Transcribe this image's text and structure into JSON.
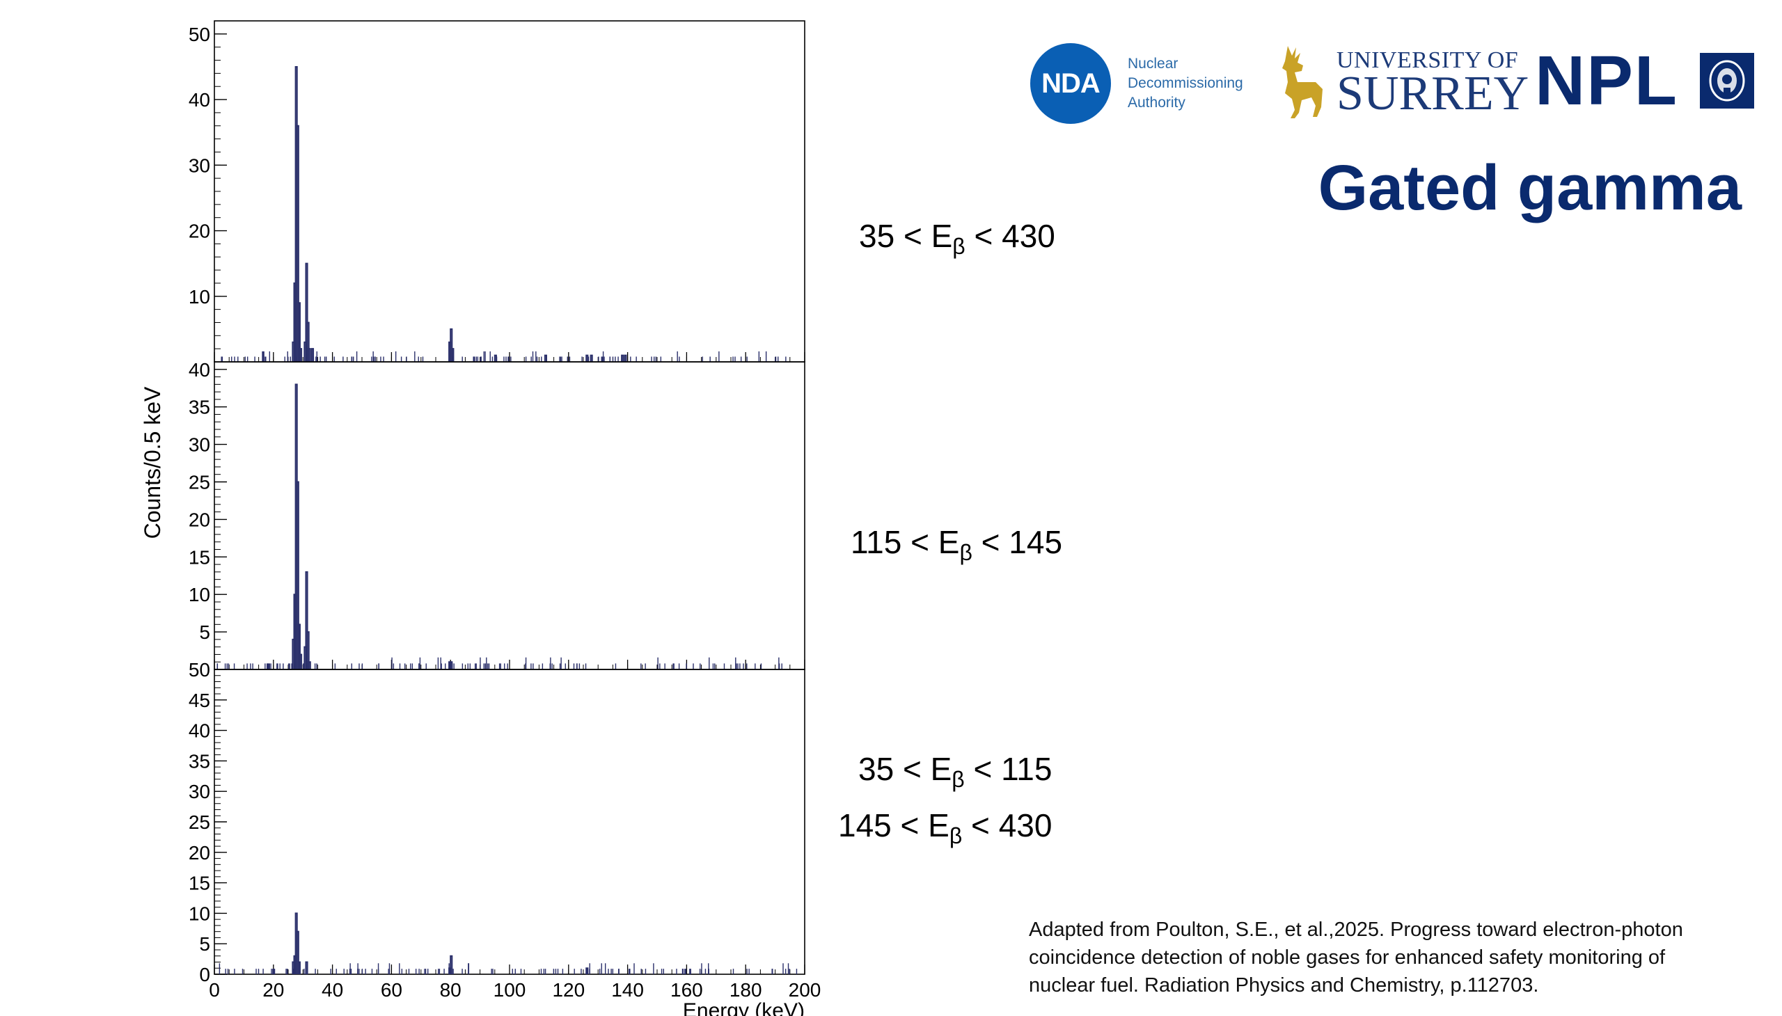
{
  "logos": {
    "nda": {
      "mark": "NDA",
      "lines": [
        "Nuclear",
        "Decommissioning",
        "Authority"
      ]
    },
    "surrey": {
      "line1": "UNIVERSITY OF",
      "line2": "SURREY",
      "icon": "stag-icon"
    },
    "npl": {
      "text": "NPL",
      "icon": "npl-crest-icon"
    }
  },
  "title": "Gated gamma",
  "gate_labels": [
    {
      "parts": [
        {
          "pre": "35 < E",
          "sub": "β",
          "post": " < 430"
        }
      ]
    },
    {
      "parts": [
        {
          "pre": "115 < E",
          "sub": "β",
          "post": " < 145"
        }
      ]
    },
    {
      "parts": [
        {
          "pre": "35 < E",
          "sub": "β",
          "post": " < 115"
        },
        {
          "pre": "145 < E",
          "sub": "β",
          "post": " < 430"
        }
      ]
    }
  ],
  "citation": [
    "Adapted from Poulton, S.E., et al.,2025. Progress toward electron-photon",
    "coincidence detection of noble gases for enhanced safety monitoring of",
    "nuclear fuel. Radiation Physics and Chemistry, p.112703."
  ],
  "chart_data": [
    {
      "type": "histogram",
      "xlabel": "",
      "ylabel": "",
      "xlim": [
        0,
        200
      ],
      "ylim": [
        0,
        52
      ],
      "yticks": [
        10,
        20,
        30,
        40,
        50
      ],
      "bin_width_keV": 0.5,
      "bins": [
        {
          "x": 26.5,
          "y": 3
        },
        {
          "x": 27.0,
          "y": 12
        },
        {
          "x": 27.5,
          "y": 45
        },
        {
          "x": 28.0,
          "y": 36
        },
        {
          "x": 28.5,
          "y": 9
        },
        {
          "x": 29.0,
          "y": 2
        },
        {
          "x": 30.5,
          "y": 3
        },
        {
          "x": 31.0,
          "y": 15
        },
        {
          "x": 31.5,
          "y": 6
        },
        {
          "x": 32.0,
          "y": 2
        },
        {
          "x": 33.0,
          "y": 2
        },
        {
          "x": 79.5,
          "y": 3
        },
        {
          "x": 80.0,
          "y": 5
        },
        {
          "x": 80.5,
          "y": 2
        },
        {
          "x": 95.0,
          "y": 1
        },
        {
          "x": 112.0,
          "y": 1
        },
        {
          "x": 126.0,
          "y": 1
        },
        {
          "x": 127.5,
          "y": 1
        },
        {
          "x": 138.0,
          "y": 1
        },
        {
          "x": 139.0,
          "y": 1
        }
      ],
      "noise_note": "scattered single counts across 0-200 keV"
    },
    {
      "type": "histogram",
      "xlabel": "",
      "ylabel": "Counts/0.5 keV",
      "xlim": [
        0,
        200
      ],
      "ylim": [
        0,
        41
      ],
      "yticks": [
        5,
        10,
        15,
        20,
        25,
        30,
        35,
        40
      ],
      "bin_width_keV": 0.5,
      "bins": [
        {
          "x": 26.5,
          "y": 4
        },
        {
          "x": 27.0,
          "y": 10
        },
        {
          "x": 27.5,
          "y": 38
        },
        {
          "x": 28.0,
          "y": 25
        },
        {
          "x": 28.5,
          "y": 6
        },
        {
          "x": 29.0,
          "y": 2
        },
        {
          "x": 30.5,
          "y": 3
        },
        {
          "x": 31.0,
          "y": 13
        },
        {
          "x": 31.5,
          "y": 5
        },
        {
          "x": 32.0,
          "y": 1
        },
        {
          "x": 80.0,
          "y": 1
        },
        {
          "x": 79.5,
          "y": 1
        }
      ],
      "noise_note": "scattered single counts across 0-200 keV"
    },
    {
      "type": "histogram",
      "xlabel": "Energy (keV)",
      "ylabel": "",
      "xlim": [
        0,
        200
      ],
      "ylim": [
        0,
        50
      ],
      "xticks": [
        0,
        20,
        40,
        60,
        80,
        100,
        120,
        140,
        160,
        180,
        200
      ],
      "yticks": [
        0,
        5,
        10,
        15,
        20,
        25,
        30,
        35,
        40,
        45,
        50
      ],
      "bin_width_keV": 0.5,
      "bins": [
        {
          "x": 26.5,
          "y": 2
        },
        {
          "x": 27.0,
          "y": 3
        },
        {
          "x": 27.5,
          "y": 10
        },
        {
          "x": 28.0,
          "y": 7
        },
        {
          "x": 28.5,
          "y": 2
        },
        {
          "x": 31.0,
          "y": 2
        },
        {
          "x": 80.0,
          "y": 3
        },
        {
          "x": 79.5,
          "y": 1
        },
        {
          "x": 126.0,
          "y": 1
        }
      ],
      "noise_note": "scattered single counts across 0-200 keV"
    }
  ]
}
